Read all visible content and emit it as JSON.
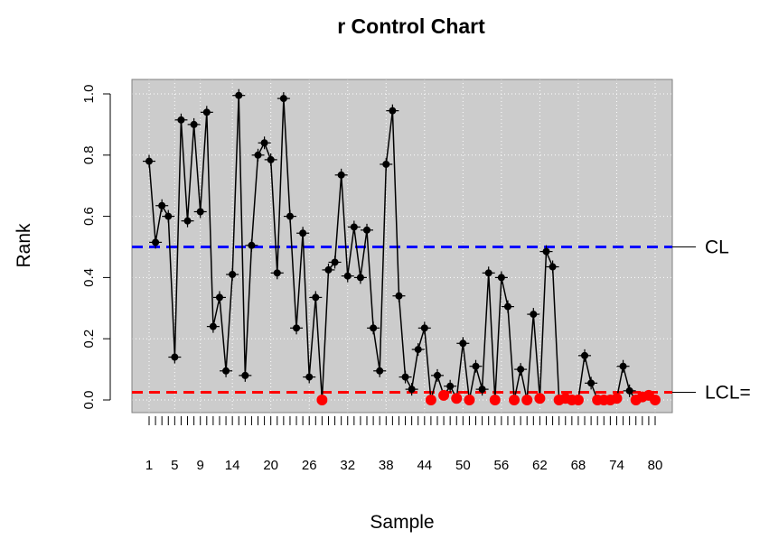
{
  "chart_data": {
    "type": "line",
    "title": "r Control Chart",
    "xlabel": "Sample",
    "ylabel": "Rank",
    "xlim": [
      1,
      80
    ],
    "ylim": [
      0,
      1
    ],
    "y_ticks": [
      "0.0",
      "0.2",
      "0.4",
      "0.6",
      "0.8",
      "1.0"
    ],
    "x_tick_labels": [
      {
        "x": 1,
        "label": "1"
      },
      {
        "x": 5,
        "label": "5"
      },
      {
        "x": 9,
        "label": "9"
      },
      {
        "x": 14,
        "label": "14"
      },
      {
        "x": 20,
        "label": "20"
      },
      {
        "x": 26,
        "label": "26"
      },
      {
        "x": 32,
        "label": "32"
      },
      {
        "x": 38,
        "label": "38"
      },
      {
        "x": 44,
        "label": "44"
      },
      {
        "x": 50,
        "label": "50"
      },
      {
        "x": 56,
        "label": "56"
      },
      {
        "x": 62,
        "label": "62"
      },
      {
        "x": 68,
        "label": "68"
      },
      {
        "x": 74,
        "label": "74"
      },
      {
        "x": 80,
        "label": "80"
      }
    ],
    "grid": true,
    "background_color": "#cccccc",
    "lines": [
      {
        "label": "CL",
        "value": 0.5,
        "color": "#0000ff"
      },
      {
        "label": "LCL=",
        "value": 0.025,
        "color": "#ff0000"
      }
    ],
    "series": [
      {
        "values": [
          0.78,
          0.515,
          0.635,
          0.6,
          0.14,
          0.915,
          0.585,
          0.9,
          0.615,
          0.94,
          0.24,
          0.335,
          0.095,
          0.41,
          0.995,
          0.08,
          0.505,
          0.8,
          0.84,
          0.785,
          0.415,
          0.985,
          0.6,
          0.235,
          0.545,
          0.075,
          0.335,
          0.0,
          0.425,
          0.45,
          0.735,
          0.405,
          0.565,
          0.4,
          0.555,
          0.235,
          0.095,
          0.77,
          0.945,
          0.34,
          0.075,
          0.035,
          0.165,
          0.235,
          0.0,
          0.08,
          0.015,
          0.045,
          0.005,
          0.185,
          0.0,
          0.11,
          0.035,
          0.415,
          0.0,
          0.4,
          0.305,
          0.0,
          0.1,
          0.0,
          0.28,
          0.005,
          0.485,
          0.435,
          0.0,
          0.005,
          0.0,
          0.0,
          0.145,
          0.055,
          0.0,
          0.0,
          0.0,
          0.005,
          0.11,
          0.03,
          0.0,
          0.01,
          0.015,
          0.0
        ],
        "color": "#000000",
        "out_of_control_color": "#ff0000"
      }
    ]
  }
}
